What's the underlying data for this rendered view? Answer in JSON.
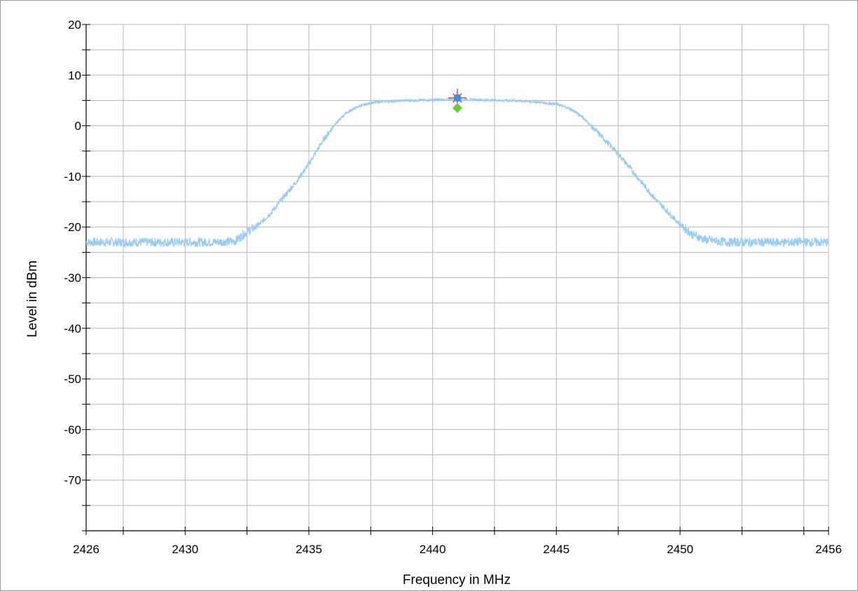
{
  "chart_data": {
    "type": "line",
    "xlabel": "Frequency in MHz",
    "ylabel": "Level in dBm",
    "xlim": [
      2426,
      2456
    ],
    "ylim": [
      -80,
      20
    ],
    "x_tick_labels": [
      "2426",
      "2430",
      "2435",
      "2440",
      "2445",
      "2450",
      "2456"
    ],
    "x_tick_values": [
      2426,
      2430,
      2435,
      2440,
      2445,
      2450,
      2456
    ],
    "x_grid_values": [
      2426,
      2427.5,
      2430,
      2432.5,
      2435,
      2437.5,
      2440,
      2442.5,
      2445,
      2447.5,
      2450,
      2452.5,
      2455,
      2456
    ],
    "y_tick_labels": [
      "20",
      "10",
      "0",
      "-10",
      "-20",
      "-30",
      "-40",
      "-50",
      "-60",
      "-70"
    ],
    "y_tick_values": [
      20,
      10,
      0,
      -10,
      -20,
      -30,
      -40,
      -50,
      -60,
      -70
    ],
    "grid": true,
    "series": [
      {
        "color": "#99ccf5",
        "x": [
          2426,
          2427,
          2428,
          2429,
          2430,
          2431,
          2432,
          2432.5,
          2433,
          2433.5,
          2434,
          2434.5,
          2435,
          2435.5,
          2436,
          2436.5,
          2437,
          2437.5,
          2438,
          2439,
          2440,
          2441,
          2442,
          2443,
          2444,
          2445,
          2445.5,
          2446,
          2446.5,
          2447,
          2447.5,
          2448,
          2448.5,
          2449,
          2449.5,
          2450,
          2450.5,
          2451,
          2451.5,
          2452,
          2453,
          2454,
          2455,
          2456
        ],
        "y": [
          -23,
          -23,
          -23,
          -23,
          -23,
          -23,
          -22.8,
          -21,
          -19.5,
          -17,
          -14,
          -11,
          -7.5,
          -3.5,
          0,
          2.5,
          3.8,
          4.5,
          4.8,
          5,
          5.1,
          5.2,
          5.1,
          5,
          4.8,
          4.3,
          3.5,
          2,
          -0.5,
          -3,
          -5.5,
          -8.5,
          -11.5,
          -14.5,
          -17,
          -19.5,
          -21.5,
          -22.5,
          -22.8,
          -23,
          -23,
          -23,
          -23,
          -23
        ]
      }
    ],
    "markers": [
      {
        "symbol": "star",
        "color": "#ff3333",
        "x": 2441,
        "y": 5.5
      },
      {
        "symbol": "circle",
        "color": "#3a8ee0",
        "x": 2441,
        "y": 5.5
      },
      {
        "symbol": "diamond",
        "color": "#66cc33",
        "x": 2441,
        "y": 3.5
      }
    ]
  }
}
